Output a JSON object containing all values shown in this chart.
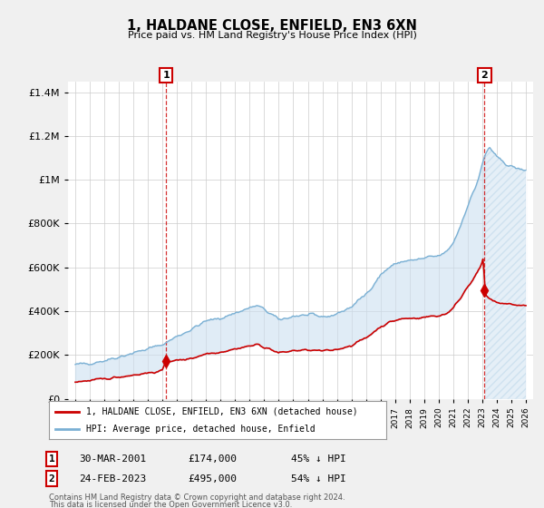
{
  "title": "1, HALDANE CLOSE, ENFIELD, EN3 6XN",
  "subtitle": "Price paid vs. HM Land Registry's House Price Index (HPI)",
  "footer1": "Contains HM Land Registry data © Crown copyright and database right 2024.",
  "footer2": "This data is licensed under the Open Government Licence v3.0.",
  "legend_property": "1, HALDANE CLOSE, ENFIELD, EN3 6XN (detached house)",
  "legend_hpi": "HPI: Average price, detached house, Enfield",
  "sale1_date": "30-MAR-2001",
  "sale1_price": "£174,000",
  "sale1_hpi": "45% ↓ HPI",
  "sale1_year": 2001.25,
  "sale1_value": 174000,
  "sale2_date": "24-FEB-2023",
  "sale2_price": "£495,000",
  "sale2_hpi": "54% ↓ HPI",
  "sale2_year": 2023.15,
  "sale2_value": 495000,
  "ylim": [
    0,
    1450000
  ],
  "xlim_min": 1994.5,
  "xlim_max": 2026.5,
  "background_color": "#f0f0f0",
  "plot_bg_color": "#ffffff",
  "red_color": "#cc0000",
  "blue_color": "#7ab0d4",
  "blue_fill": "#cce0f0",
  "grid_color": "#cccccc",
  "hatch_color": "#dddddd"
}
